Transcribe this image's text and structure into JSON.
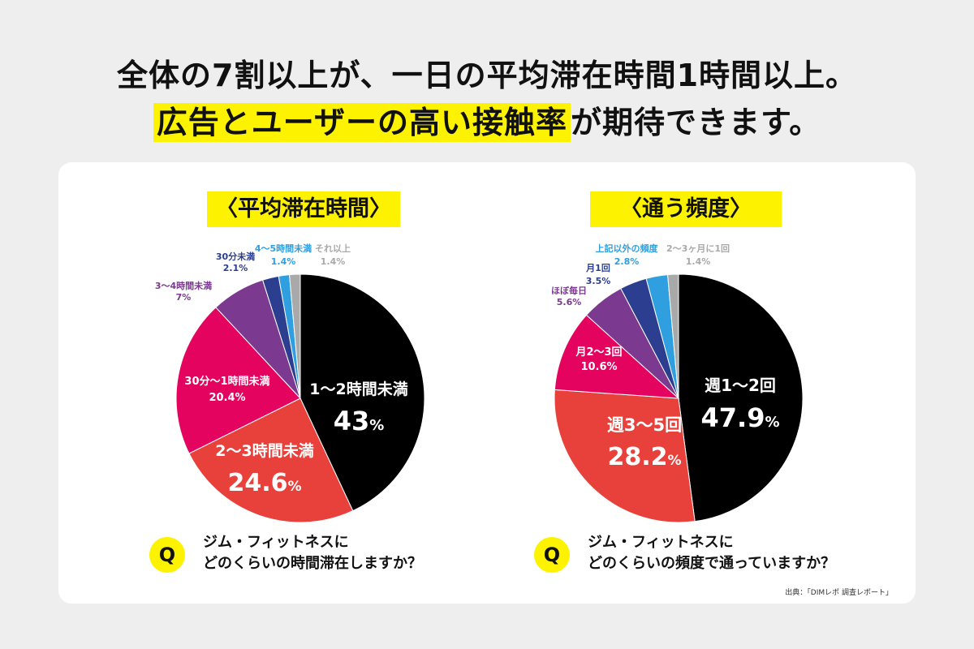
{
  "headline": {
    "line1": "全体の7割以上が、一日の平均滞在時間1時間以上。",
    "line2_highlight": "広告とユーザーの高い接触率",
    "line2_rest": "が期待できます。"
  },
  "chart_data": [
    {
      "type": "pie",
      "title": "〈平均滞在時間〉",
      "slices": [
        {
          "label": "1〜2時間未満",
          "value": 43,
          "value_text": "43",
          "color": "#000000",
          "label_color": "#ffffff"
        },
        {
          "label": "2〜3時間未満",
          "value": 24.6,
          "value_text": "24.6",
          "color": "#e8413b",
          "label_color": "#ffffff"
        },
        {
          "label": "30分〜1時間未満",
          "value": 20.4,
          "value_text": "20.4%",
          "color": "#e4045f",
          "label_color": "#ffffff"
        },
        {
          "label": "3〜4時間未満",
          "value": 7,
          "value_text": "7%",
          "color": "#7b3a8f",
          "label_color": "#7b3a8f"
        },
        {
          "label": "30分未満",
          "value": 2.1,
          "value_text": "2.1%",
          "color": "#2c3e8f",
          "label_color": "#2c3e8f"
        },
        {
          "label": "4〜5時間未満",
          "value": 1.4,
          "value_text": "1.4%",
          "color": "#2f9fe0",
          "label_color": "#2f9fe0"
        },
        {
          "label": "それ以上",
          "value": 1.4,
          "value_text": "1.4%",
          "color": "#a9a9a9",
          "label_color": "#a9a9a9"
        }
      ],
      "question": {
        "mark": "Q",
        "line1": "ジム・フィットネスに",
        "line2": "どのくらいの時間滞在しますか？"
      }
    },
    {
      "type": "pie",
      "title": "〈通う頻度〉",
      "slices": [
        {
          "label": "週1〜2回",
          "value": 47.9,
          "value_text": "47.9",
          "color": "#000000",
          "label_color": "#ffffff"
        },
        {
          "label": "週3〜5回",
          "value": 28.2,
          "value_text": "28.2",
          "color": "#e8413b",
          "label_color": "#ffffff"
        },
        {
          "label": "月2〜3回",
          "value": 10.6,
          "value_text": "10.6%",
          "color": "#e4045f",
          "label_color": "#ffffff"
        },
        {
          "label": "ほぼ毎日",
          "value": 5.6,
          "value_text": "5.6%",
          "color": "#7b3a8f",
          "label_color": "#7b3a8f"
        },
        {
          "label": "月1回",
          "value": 3.5,
          "value_text": "3.5%",
          "color": "#2c3e8f",
          "label_color": "#2c3e8f"
        },
        {
          "label": "上記以外の頻度",
          "value": 2.8,
          "value_text": "2.8%",
          "color": "#2f9fe0",
          "label_color": "#2f9fe0"
        },
        {
          "label": "2〜3ヶ月に1回",
          "value": 1.4,
          "value_text": "1.4%",
          "color": "#a9a9a9",
          "label_color": "#a9a9a9"
        }
      ],
      "question": {
        "mark": "Q",
        "line1": "ジム・フィットネスに",
        "line2": "どのくらいの頻度で通っていますか？"
      }
    }
  ],
  "percent_sign": "%",
  "source": "出典：「DIMレポ 調査レポート」"
}
